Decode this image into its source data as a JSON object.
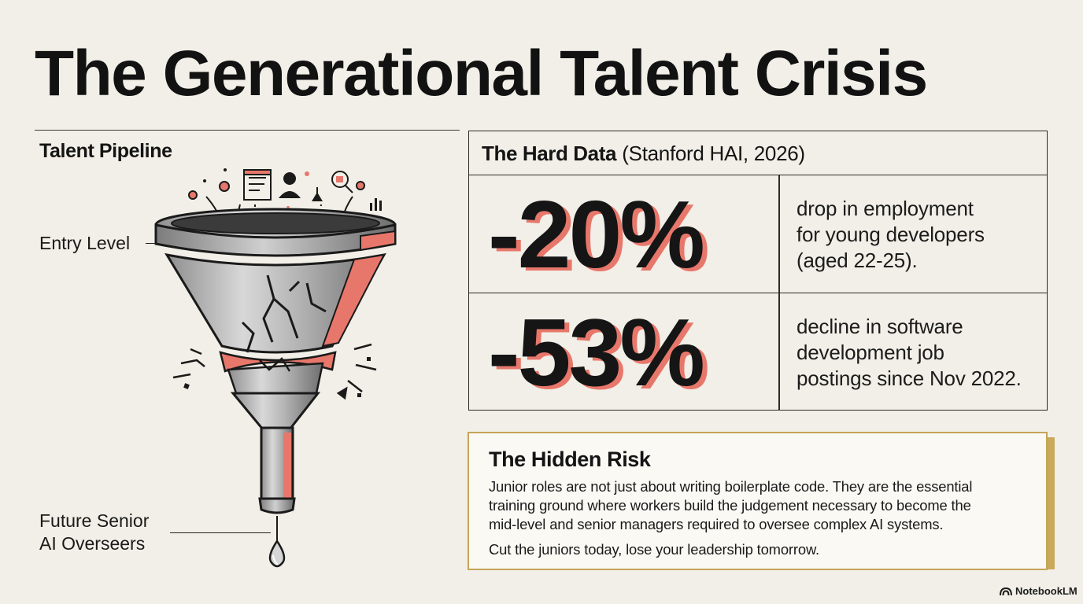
{
  "title": "The Generational Talent Crisis",
  "pipeline": {
    "heading": "Talent Pipeline",
    "top_label": "Entry Level",
    "bottom_label_line1": "Future Senior",
    "bottom_label_line2": "AI Overseers"
  },
  "hard_data": {
    "heading": "The Hard Data",
    "source": "(Stanford HAI, 2026)",
    "stats": [
      {
        "value": "-20%",
        "desc_lines": [
          "drop in employment",
          "for young developers",
          "(aged 22-25)."
        ]
      },
      {
        "value": "-53%",
        "desc_lines": [
          "decline in software",
          "development job",
          "postings since Nov 2022."
        ]
      }
    ]
  },
  "hidden_risk": {
    "heading": "The Hidden Risk",
    "body_lines": [
      "Junior roles are not just about writing boilerplate code. They are the essential",
      "training ground where workers build the judgement necessary to become the",
      "mid-level and senior managers required to oversee complex AI systems."
    ],
    "tagline": "Cut the juniors today, lose your leadership tomorrow."
  },
  "brand": {
    "name": "NotebookLM",
    "icon": "notebooklm-logo-icon"
  },
  "colors": {
    "background": "#f1efe7",
    "accent_coral": "#e8776b",
    "accent_gold": "#c6a458",
    "ink": "#141414"
  }
}
